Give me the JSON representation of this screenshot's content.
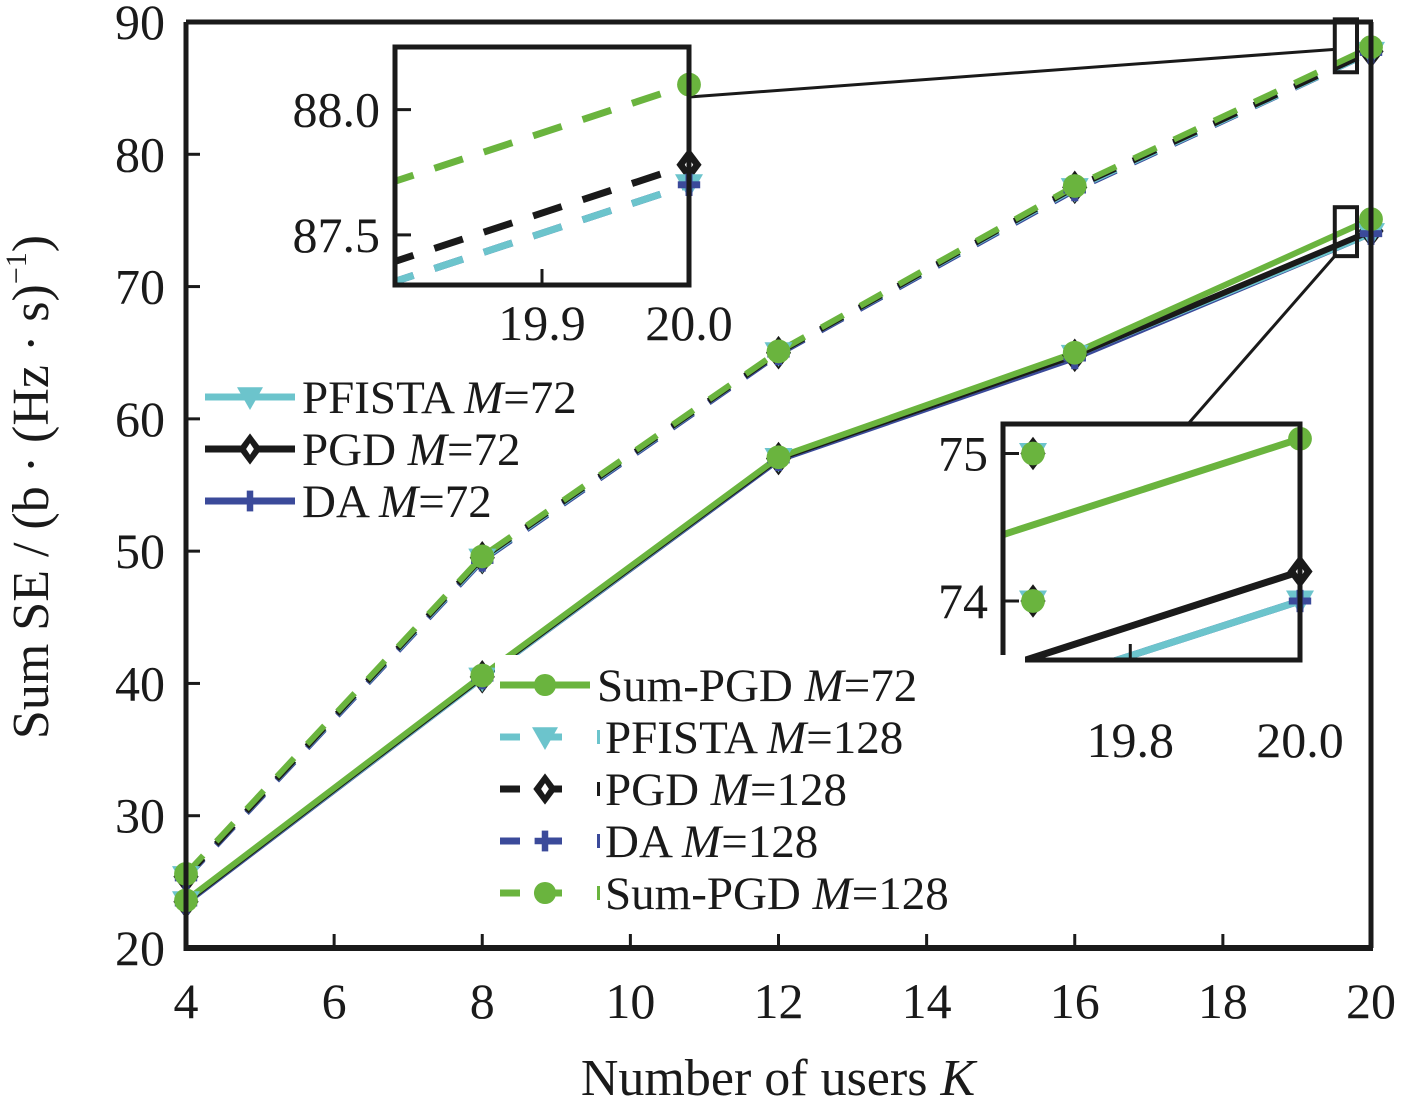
{
  "chart_data": {
    "type": "line",
    "title": "",
    "xlabel": "Number of users",
    "xlabel_italic": "K",
    "ylabel": "Sum SE / (b · (Hz · s)",
    "ylabel_sup": "−1",
    "ylabel_close": ")",
    "xlim": [
      4,
      20
    ],
    "ylim": [
      20,
      90
    ],
    "xticks": [
      4,
      6,
      8,
      10,
      12,
      14,
      16,
      18,
      20
    ],
    "xtick_labels": [
      "4",
      "6",
      "8",
      "10",
      "12",
      "14",
      "16",
      "18",
      "20"
    ],
    "yticks": [
      20,
      30,
      40,
      50,
      60,
      70,
      80,
      90
    ],
    "ytick_labels": [
      "20",
      "30",
      "40",
      "50",
      "60",
      "70",
      "80",
      "90"
    ],
    "grid": false,
    "x": [
      4,
      8,
      12,
      16,
      20
    ],
    "series": [
      {
        "name": "PFISTA",
        "m": "72",
        "color": "#6cc4cc",
        "dash": false,
        "marker": "triangle-down",
        "values": [
          23.5,
          40.4,
          57.0,
          64.8,
          74.0
        ]
      },
      {
        "name": "PGD",
        "m": "72",
        "color": "#1a1a1a",
        "dash": false,
        "marker": "diamond",
        "values": [
          23.5,
          40.5,
          57.0,
          64.8,
          74.2
        ]
      },
      {
        "name": "DA",
        "m": "72",
        "color": "#3b4a9a",
        "dash": false,
        "marker": "plus",
        "values": [
          23.4,
          40.4,
          56.9,
          64.6,
          74.0
        ]
      },
      {
        "name": "Sum-PGD",
        "m": "72",
        "color": "#6ab43e",
        "dash": false,
        "marker": "circle",
        "values": [
          23.6,
          40.6,
          57.1,
          65.0,
          75.1
        ]
      },
      {
        "name": "PFISTA",
        "m": "128",
        "color": "#6cc4cc",
        "dash": true,
        "marker": "triangle-down",
        "values": [
          25.4,
          49.4,
          65.0,
          77.4,
          87.7
        ]
      },
      {
        "name": "PGD",
        "m": "128",
        "color": "#1a1a1a",
        "dash": true,
        "marker": "diamond",
        "values": [
          25.4,
          49.5,
          65.0,
          77.5,
          87.78
        ]
      },
      {
        "name": "DA",
        "m": "128",
        "color": "#3b4a9a",
        "dash": true,
        "marker": "plus",
        "values": [
          25.3,
          49.3,
          64.9,
          77.3,
          87.7
        ]
      },
      {
        "name": "Sum-PGD",
        "m": "128",
        "color": "#6ab43e",
        "dash": true,
        "marker": "circle",
        "values": [
          25.6,
          49.6,
          65.1,
          77.6,
          88.1
        ]
      }
    ],
    "legend": [
      {
        "group": "upper-left",
        "entries": [
          0,
          1,
          2
        ]
      },
      {
        "group": "lower-center",
        "entries": [
          3,
          4,
          5,
          6,
          7
        ]
      }
    ],
    "legend_prefix_italic": "M",
    "insets": [
      {
        "name": "inset-m128",
        "placement": "top-left",
        "xlim": [
          19.8,
          20.0
        ],
        "ylim": [
          87.3,
          88.25
        ],
        "xticks": [
          19.9,
          20.0
        ],
        "xtick_labels": [
          "19.9",
          "20.0"
        ],
        "yticks": [
          87.5,
          88.0
        ],
        "ytick_labels": [
          "87.5",
          "88.0"
        ],
        "series_indices": [
          4,
          5,
          6,
          7
        ],
        "zoom_box": {
          "x": [
            19.7,
            20.0
          ],
          "y": [
            86.2,
            90.2
          ]
        }
      },
      {
        "name": "inset-m72",
        "placement": "right",
        "xlim": [
          19.65,
          20.0
        ],
        "ylim": [
          73.6,
          75.2
        ],
        "xticks": [
          19.8,
          20.0
        ],
        "xtick_labels": [
          "19.8",
          "20.0"
        ],
        "yticks": [
          74,
          75
        ],
        "ytick_labels": [
          "74",
          "75"
        ],
        "series_indices": [
          0,
          1,
          2,
          3
        ],
        "zoom_box": {
          "x": [
            19.7,
            20.0
          ],
          "y": [
            72.3,
            76.0
          ]
        },
        "ytick_markers": [
          74,
          75
        ]
      }
    ]
  }
}
